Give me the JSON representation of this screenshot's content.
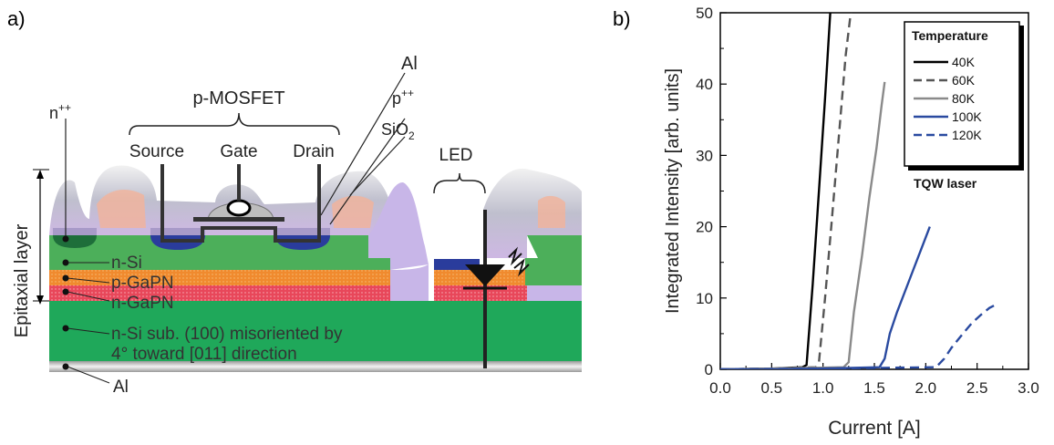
{
  "panel_a": {
    "label": "a)",
    "labels": {
      "n_pp": "n",
      "n_pp_sup": "++",
      "p_mosfet": "p-MOSFET",
      "al_top": "Al",
      "p_pp": "p",
      "p_pp_sup": "++",
      "sio2": "SiO",
      "sio2_sub": "2",
      "source": "Source",
      "gate": "Gate",
      "drain": "Drain",
      "led": "LED",
      "epitaxial": "Epitaxial layer",
      "n_si": "n-Si",
      "p_gapn": "p-GaPN",
      "n_gapn": "n-GaPN",
      "substrate_line1": "n-Si sub. (100) misoriented by",
      "substrate_line2": "4° toward [011] direction",
      "al_bottom": "Al"
    },
    "colors": {
      "n_si": "#4caf5a",
      "p_gapn": "#f08a2e",
      "n_gapn": "#e8475a",
      "substrate": "#1fa85a",
      "blue": "#2a3c9c",
      "al": "#c9c9c9"
    }
  },
  "panel_b": {
    "label": "b)"
  },
  "chart_data": {
    "type": "line",
    "xlabel": "Current [A]",
    "ylabel": "Integrated Intensity [arb. units]",
    "xlim": [
      0.0,
      3.0
    ],
    "ylim": [
      0,
      50
    ],
    "xticks": [
      "0.0",
      "0.5",
      "1.0",
      "1.5",
      "2.0",
      "2.5",
      "3.0"
    ],
    "yticks": [
      "0",
      "10",
      "20",
      "30",
      "40",
      "50"
    ],
    "legend_title": "Temperature",
    "legend_position": "top-right",
    "annotation": "TQW laser",
    "grid": false,
    "series": [
      {
        "name": "40K",
        "color": "#000000",
        "dash": "solid",
        "x": [
          0.0,
          0.5,
          0.8,
          0.84,
          0.9,
          0.96,
          1.02,
          1.07
        ],
        "y": [
          0.0,
          0.1,
          0.3,
          0.6,
          12.0,
          25.0,
          38.0,
          50.0
        ]
      },
      {
        "name": "60K",
        "color": "#555555",
        "dash": "dashed",
        "x": [
          0.0,
          0.5,
          0.93,
          0.96,
          1.02,
          1.08,
          1.15,
          1.22,
          1.27
        ],
        "y": [
          0.0,
          0.1,
          0.3,
          1.0,
          10.0,
          20.0,
          32.0,
          44.0,
          50.0
        ]
      },
      {
        "name": "80K",
        "color": "#8a8a8a",
        "dash": "solid",
        "x": [
          0.0,
          0.5,
          1.2,
          1.25,
          1.3,
          1.38,
          1.45,
          1.52,
          1.57,
          1.6
        ],
        "y": [
          0.0,
          0.1,
          0.3,
          1.0,
          8.0,
          16.0,
          24.0,
          31.0,
          37.0,
          40.3
        ]
      },
      {
        "name": "100K",
        "color": "#2a4aa0",
        "dash": "solid",
        "x": [
          0.0,
          0.5,
          1.0,
          1.55,
          1.6,
          1.65,
          1.72,
          1.8,
          1.88,
          1.96,
          2.04
        ],
        "y": [
          0.0,
          0.0,
          0.1,
          0.3,
          1.5,
          5.0,
          8.0,
          11.0,
          14.0,
          17.0,
          20.0
        ]
      },
      {
        "name": "120K",
        "color": "#2a4aa0",
        "dash": "dashed",
        "x": [
          0.0,
          1.0,
          2.1,
          2.18,
          2.25,
          2.35,
          2.45,
          2.55,
          2.62,
          2.7
        ],
        "y": [
          0.0,
          0.1,
          0.3,
          1.5,
          3.0,
          4.8,
          6.5,
          7.8,
          8.6,
          9.2
        ]
      }
    ]
  }
}
